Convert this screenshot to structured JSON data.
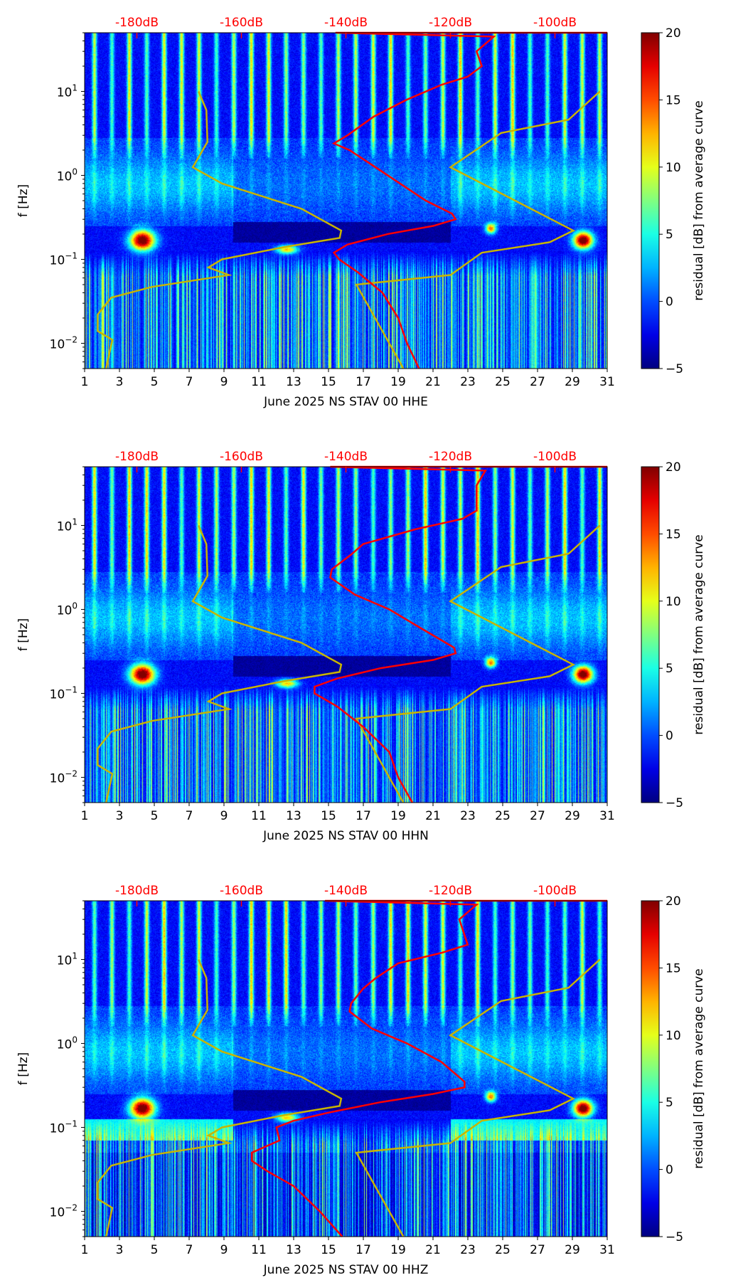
{
  "chart_data": [
    {
      "type": "heatmap",
      "xlabel": "June 2025 NS STAV 00 HHE",
      "ylabel": "f [Hz]",
      "xlim": [
        1,
        31
      ],
      "ylim": [
        0.005,
        50
      ],
      "yscale": "log",
      "xticks": [
        "1",
        "3",
        "5",
        "7",
        "9",
        "11",
        "13",
        "15",
        "17",
        "19",
        "21",
        "23",
        "25",
        "27",
        "29",
        "31"
      ],
      "yticks": [
        {
          "base": "10",
          "exp": "1"
        },
        {
          "base": "10",
          "exp": "0"
        },
        {
          "base": "10",
          "exp": "−1"
        },
        {
          "base": "10",
          "exp": "−2"
        }
      ],
      "top_axis": {
        "labels": [
          "-180dB",
          "-160dB",
          "-140dB",
          "-120dB",
          "-100dB"
        ],
        "values": [
          -180,
          -160,
          -140,
          -120,
          -100
        ],
        "range": [
          -190,
          -90
        ],
        "color": "#ff0000"
      },
      "colorbar": {
        "label": "residual [dB] from average curve",
        "range": [
          -5,
          20
        ],
        "ticks": [
          "20",
          "15",
          "10",
          "5",
          "0",
          "−5"
        ],
        "tick_values": [
          20,
          15,
          10,
          5,
          0,
          -5
        ],
        "colormap": "jet"
      },
      "average_psd_curve": {
        "color": "#ff0000",
        "points_freq_db": [
          [
            50,
            -90
          ],
          [
            50,
            -142
          ],
          [
            45,
            -111.7
          ],
          [
            30,
            -115
          ],
          [
            20,
            -114
          ],
          [
            15,
            -116.7
          ],
          [
            12,
            -121.7
          ],
          [
            8,
            -128.3
          ],
          [
            5,
            -134.7
          ],
          [
            3,
            -139.7
          ],
          [
            2.4,
            -142.3
          ],
          [
            2,
            -139.3
          ],
          [
            1,
            -132
          ],
          [
            0.5,
            -124.7
          ],
          [
            0.35,
            -119.7
          ],
          [
            0.3,
            -119
          ],
          [
            0.25,
            -123.3
          ],
          [
            0.2,
            -132
          ],
          [
            0.15,
            -139.7
          ],
          [
            0.12,
            -142.3
          ],
          [
            0.1,
            -141.3
          ],
          [
            0.07,
            -137.7
          ],
          [
            0.04,
            -133
          ],
          [
            0.02,
            -130
          ],
          [
            0.01,
            -128.3
          ],
          [
            0.005,
            -126
          ]
        ]
      },
      "seed": 1
    },
    {
      "type": "heatmap",
      "xlabel": "June 2025 NS STAV 00 HHN",
      "ylabel": "f [Hz]",
      "xlim": [
        1,
        31
      ],
      "ylim": [
        0.005,
        50
      ],
      "yscale": "log",
      "xticks": [
        "1",
        "3",
        "5",
        "7",
        "9",
        "11",
        "13",
        "15",
        "17",
        "19",
        "21",
        "23",
        "25",
        "27",
        "29",
        "31"
      ],
      "yticks": [
        {
          "base": "10",
          "exp": "1"
        },
        {
          "base": "10",
          "exp": "0"
        },
        {
          "base": "10",
          "exp": "−1"
        },
        {
          "base": "10",
          "exp": "−2"
        }
      ],
      "top_axis": {
        "labels": [
          "-180dB",
          "-160dB",
          "-140dB",
          "-120dB",
          "-100dB"
        ],
        "values": [
          -180,
          -160,
          -140,
          -120,
          -100
        ],
        "range": [
          -190,
          -90
        ],
        "color": "#ff0000"
      },
      "colorbar": {
        "label": "residual [dB] from average curve",
        "range": [
          -5,
          20
        ],
        "ticks": [
          "20",
          "15",
          "10",
          "5",
          "0",
          "−5"
        ],
        "tick_values": [
          20,
          15,
          10,
          5,
          0,
          -5
        ],
        "colormap": "jet"
      },
      "average_psd_curve": {
        "color": "#ff0000",
        "points_freq_db": [
          [
            50,
            -90
          ],
          [
            50,
            -143
          ],
          [
            45,
            -113.3
          ],
          [
            30,
            -115
          ],
          [
            15,
            -115
          ],
          [
            12,
            -117.7
          ],
          [
            9,
            -126.7
          ],
          [
            6,
            -136.7
          ],
          [
            4.5,
            -139
          ],
          [
            3,
            -142.7
          ],
          [
            2.4,
            -143
          ],
          [
            1.5,
            -138.3
          ],
          [
            1,
            -131.7
          ],
          [
            0.6,
            -125.7
          ],
          [
            0.35,
            -119.3
          ],
          [
            0.3,
            -119
          ],
          [
            0.25,
            -123.3
          ],
          [
            0.2,
            -133.3
          ],
          [
            0.15,
            -141.7
          ],
          [
            0.12,
            -146
          ],
          [
            0.1,
            -146
          ],
          [
            0.07,
            -141.7
          ],
          [
            0.04,
            -136.7
          ],
          [
            0.02,
            -131.7
          ],
          [
            0.01,
            -130
          ],
          [
            0.005,
            -127.3
          ]
        ]
      },
      "seed": 2
    },
    {
      "type": "heatmap",
      "xlabel": "June 2025 NS STAV 00 HHZ",
      "ylabel": "f [Hz]",
      "xlim": [
        1,
        31
      ],
      "ylim": [
        0.005,
        50
      ],
      "yscale": "log",
      "xticks": [
        "1",
        "3",
        "5",
        "7",
        "9",
        "11",
        "13",
        "15",
        "17",
        "19",
        "21",
        "23",
        "25",
        "27",
        "29",
        "31"
      ],
      "yticks": [
        {
          "base": "10",
          "exp": "1"
        },
        {
          "base": "10",
          "exp": "0"
        },
        {
          "base": "10",
          "exp": "−1"
        },
        {
          "base": "10",
          "exp": "−2"
        }
      ],
      "top_axis": {
        "labels": [
          "-180dB",
          "-160dB",
          "-140dB",
          "-120dB",
          "-100dB"
        ],
        "values": [
          -180,
          -160,
          -140,
          -120,
          -100
        ],
        "range": [
          -190,
          -90
        ],
        "color": "#ff0000"
      },
      "colorbar": {
        "label": "residual [dB] from average curve",
        "range": [
          -5,
          20
        ],
        "ticks": [
          "20",
          "15",
          "10",
          "5",
          "0",
          "−5"
        ],
        "tick_values": [
          20,
          15,
          10,
          5,
          0,
          -5
        ],
        "colormap": "jet"
      },
      "average_psd_curve": {
        "color": "#ff0000",
        "points_freq_db": [
          [
            50,
            -90
          ],
          [
            50,
            -144
          ],
          [
            45,
            -115
          ],
          [
            30,
            -118.3
          ],
          [
            15,
            -116.7
          ],
          [
            12,
            -121.7
          ],
          [
            9,
            -130
          ],
          [
            6,
            -134.3
          ],
          [
            4.5,
            -136.7
          ],
          [
            3,
            -139
          ],
          [
            2.4,
            -139.3
          ],
          [
            1.5,
            -135
          ],
          [
            1,
            -128.3
          ],
          [
            0.6,
            -121.7
          ],
          [
            0.35,
            -117.3
          ],
          [
            0.3,
            -117.3
          ],
          [
            0.25,
            -123.3
          ],
          [
            0.2,
            -133.3
          ],
          [
            0.15,
            -143.3
          ],
          [
            0.12,
            -150
          ],
          [
            0.1,
            -153.3
          ],
          [
            0.07,
            -152.7
          ],
          [
            0.05,
            -158
          ],
          [
            0.04,
            -158
          ],
          [
            0.03,
            -155
          ],
          [
            0.02,
            -150
          ],
          [
            0.01,
            -145
          ],
          [
            0.005,
            -140.7
          ]
        ]
      },
      "seed": 3
    }
  ],
  "noise_models": {
    "color": "#c8b400",
    "low_noise_model": [
      [
        10,
        -168.2
      ],
      [
        6,
        -166.7
      ],
      [
        2.5,
        -166.5
      ],
      [
        1.25,
        -169.3
      ],
      [
        0.8,
        -163.7
      ],
      [
        0.4,
        -148.5
      ],
      [
        0.22,
        -140.9
      ],
      [
        0.18,
        -141.2
      ],
      [
        0.14,
        -151.8
      ],
      [
        0.1,
        -163.7
      ],
      [
        0.08,
        -166.3
      ],
      [
        0.065,
        -162.4
      ],
      [
        0.047,
        -177.1
      ],
      [
        0.035,
        -184.9
      ],
      [
        0.022,
        -187.5
      ],
      [
        0.014,
        -187.5
      ],
      [
        0.011,
        -184.7
      ],
      [
        0.005,
        -185.9
      ]
    ],
    "high_noise_model": [
      [
        10,
        -91.4
      ],
      [
        4.6,
        -97.4
      ],
      [
        3.2,
        -110.3
      ],
      [
        1.25,
        -120
      ],
      [
        0.22,
        -96.5
      ],
      [
        0.16,
        -101
      ],
      [
        0.12,
        -114
      ],
      [
        0.065,
        -120
      ],
      [
        0.05,
        -138
      ],
      [
        0.005,
        -129
      ]
    ]
  }
}
